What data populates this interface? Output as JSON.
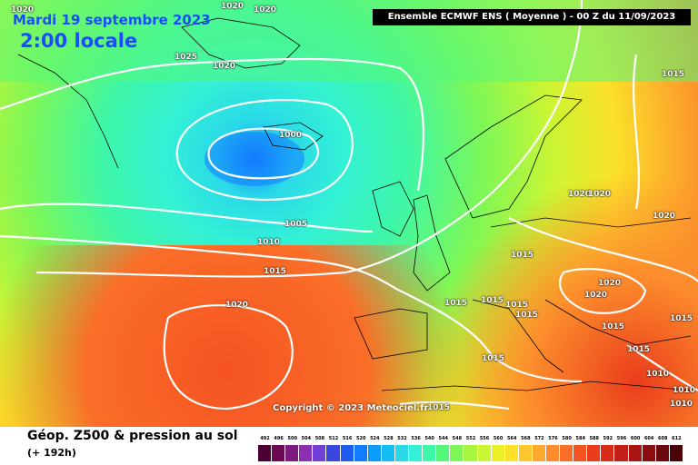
{
  "header": {
    "date": "Mardi 19 septembre 2023",
    "local_time": "2:00 locale",
    "run_info": "Ensemble ECMWF ENS  ( Moyenne )  -  00 Z du 11/09/2023"
  },
  "footer": {
    "product": "Géop. Z500 & pression au sol",
    "step": "(+ 192h)",
    "copyright": "Copyright © 2023 Meteociel.fr"
  },
  "isobar_labels": [
    "1020",
    "1020",
    "1020",
    "1025",
    "1020",
    "1015",
    "1000",
    "1005",
    "1010",
    "1015",
    "1020",
    "1015",
    "1015",
    "1015",
    "1015",
    "1015",
    "1020",
    "1020",
    "1020",
    "1020",
    "1020",
    "1015",
    "1015",
    "1015",
    "1010",
    "1010",
    "1010",
    "1015",
    "1015"
  ],
  "legend": {
    "values": [
      "492",
      "496",
      "500",
      "504",
      "508",
      "512",
      "516",
      "520",
      "524",
      "528",
      "532",
      "536",
      "540",
      "544",
      "548",
      "552",
      "556",
      "560",
      "564",
      "568",
      "572",
      "576",
      "580",
      "584",
      "588",
      "592",
      "596",
      "600",
      "604",
      "608",
      "612"
    ],
    "colors": [
      "#4a0033",
      "#6b0a52",
      "#7d1a7e",
      "#8a2fb0",
      "#6f3fd6",
      "#3a46e0",
      "#1e5cf0",
      "#127cff",
      "#0a9cff",
      "#14bcf2",
      "#2ad9e8",
      "#33f0d6",
      "#3ef7a8",
      "#55f77b",
      "#7df757",
      "#a8f73e",
      "#ccf532",
      "#ecf028",
      "#fbe12a",
      "#fcc62c",
      "#fca82c",
      "#fc8c2c",
      "#fa6e28",
      "#f55322",
      "#ea3c1c",
      "#d92c18",
      "#c41f16",
      "#a81612",
      "#8a0e10",
      "#6a080d",
      "#4a0409"
    ]
  }
}
